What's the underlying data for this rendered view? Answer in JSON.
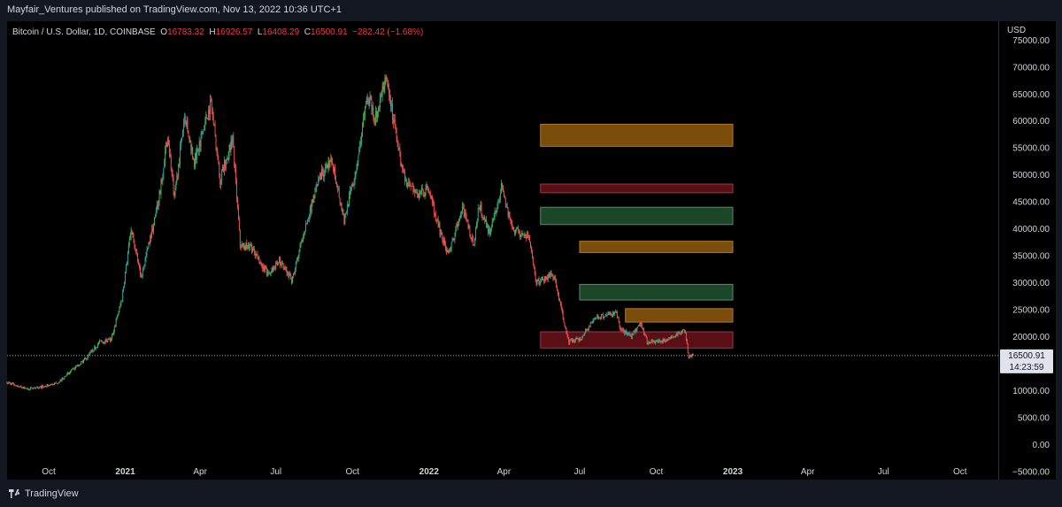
{
  "publisher_line": "Mayfair_Ventures published on TradingView.com, Nov 13, 2022 10:36 UTC+1",
  "legend": {
    "symbol": "Bitcoin / U.S. Dollar, 1D, COINBASE",
    "open_label": "O",
    "open": "16783.32",
    "high_label": "H",
    "high": "16926.57",
    "low_label": "L",
    "low": "16408.29",
    "close_label": "C",
    "close": "16500.91",
    "change": "−282.42 (−1.68%)"
  },
  "price_scale": {
    "currency": "USD",
    "ticks": [
      75000,
      70000,
      65000,
      60000,
      55000,
      50000,
      45000,
      40000,
      35000,
      30000,
      25000,
      20000,
      15000,
      10000,
      5000,
      0,
      -5000
    ],
    "tick_labels": [
      "75000.00",
      "70000.00",
      "65000.00",
      "60000.00",
      "55000.00",
      "50000.00",
      "45000.00",
      "40000.00",
      "35000.00",
      "30000.00",
      "25000.00",
      "20000.00",
      "",
      "10000.00",
      "5000.00",
      "0.00",
      "−5000.00"
    ]
  },
  "last_price": {
    "value": 16500.91,
    "label": "16500.91",
    "countdown": "14:23:59"
  },
  "time_axis": {
    "ticks": [
      {
        "label": "Oct",
        "t": "2020-10-01",
        "bold": false
      },
      {
        "label": "2021",
        "t": "2021-01-01",
        "bold": true
      },
      {
        "label": "Apr",
        "t": "2021-04-01",
        "bold": false
      },
      {
        "label": "Jul",
        "t": "2021-07-01",
        "bold": false
      },
      {
        "label": "Oct",
        "t": "2021-10-01",
        "bold": false
      },
      {
        "label": "2022",
        "t": "2022-01-01",
        "bold": true
      },
      {
        "label": "Apr",
        "t": "2022-04-01",
        "bold": false
      },
      {
        "label": "Jul",
        "t": "2022-07-01",
        "bold": false
      },
      {
        "label": "Oct",
        "t": "2022-10-01",
        "bold": false
      },
      {
        "label": "2023",
        "t": "2023-01-01",
        "bold": true
      },
      {
        "label": "Apr",
        "t": "2023-04-01",
        "bold": false
      },
      {
        "label": "Jul",
        "t": "2023-07-01",
        "bold": false
      },
      {
        "label": "Oct",
        "t": "2023-10-01",
        "bold": false
      }
    ]
  },
  "chart_data": {
    "type": "candlestick",
    "series": "Bitcoin / U.S. Dollar, 1D, COINBASE",
    "xlim": [
      "2020-08-12",
      "2023-11-16"
    ],
    "ylim": [
      -6500,
      78500
    ],
    "price_path": [
      [
        "2020-08-12",
        11500
      ],
      [
        "2020-09-05",
        10300
      ],
      [
        "2020-09-20",
        10600
      ],
      [
        "2020-10-10",
        11300
      ],
      [
        "2020-10-25",
        13200
      ],
      [
        "2020-11-15",
        16000
      ],
      [
        "2020-12-01",
        19000
      ],
      [
        "2020-12-15",
        19500
      ],
      [
        "2020-12-28",
        27000
      ],
      [
        "2021-01-08",
        40000
      ],
      [
        "2021-01-20",
        31000
      ],
      [
        "2021-02-10",
        45000
      ],
      [
        "2021-02-21",
        57500
      ],
      [
        "2021-03-01",
        45500
      ],
      [
        "2021-03-13",
        61000
      ],
      [
        "2021-03-25",
        52500
      ],
      [
        "2021-04-14",
        63500
      ],
      [
        "2021-04-25",
        49000
      ],
      [
        "2021-05-10",
        57000
      ],
      [
        "2021-05-19",
        37000
      ],
      [
        "2021-06-01",
        36500
      ],
      [
        "2021-06-22",
        31500
      ],
      [
        "2021-07-05",
        34000
      ],
      [
        "2021-07-20",
        30500
      ],
      [
        "2021-08-05",
        40000
      ],
      [
        "2021-08-22",
        49500
      ],
      [
        "2021-09-07",
        52500
      ],
      [
        "2021-09-21",
        41500
      ],
      [
        "2021-10-05",
        51000
      ],
      [
        "2021-10-20",
        65000
      ],
      [
        "2021-10-28",
        60000
      ],
      [
        "2021-11-10",
        68500
      ],
      [
        "2021-11-26",
        54000
      ],
      [
        "2021-12-04",
        48000
      ],
      [
        "2021-12-20",
        46500
      ],
      [
        "2022-01-01",
        47500
      ],
      [
        "2022-01-10",
        41500
      ],
      [
        "2022-01-24",
        35000
      ],
      [
        "2022-02-10",
        44000
      ],
      [
        "2022-02-24",
        37000
      ],
      [
        "2022-03-02",
        44500
      ],
      [
        "2022-03-15",
        39000
      ],
      [
        "2022-03-29",
        47500
      ],
      [
        "2022-04-11",
        40000
      ],
      [
        "2022-05-01",
        38500
      ],
      [
        "2022-05-10",
        30000
      ],
      [
        "2022-05-31",
        31500
      ],
      [
        "2022-06-13",
        22000
      ],
      [
        "2022-06-18",
        19000
      ],
      [
        "2022-07-01",
        19500
      ],
      [
        "2022-07-20",
        23500
      ],
      [
        "2022-08-14",
        24500
      ],
      [
        "2022-08-19",
        21500
      ],
      [
        "2022-09-01",
        20000
      ],
      [
        "2022-09-12",
        22500
      ],
      [
        "2022-09-20",
        19000
      ],
      [
        "2022-10-10",
        19300
      ],
      [
        "2022-10-29",
        20800
      ],
      [
        "2022-11-05",
        21000
      ],
      [
        "2022-11-09",
        16000
      ],
      [
        "2022-11-13",
        16500
      ]
    ],
    "last": {
      "open": 16783.32,
      "high": 16926.57,
      "low": 16408.29,
      "close": 16500.91,
      "change": -282.42,
      "change_pct": -1.68
    },
    "zones": [
      {
        "kind": "orange",
        "low": 55300,
        "high": 59400,
        "from": "2022-05-15",
        "to": "2023-01-01"
      },
      {
        "kind": "red",
        "low": 46700,
        "high": 48300,
        "from": "2022-05-15",
        "to": "2023-01-01"
      },
      {
        "kind": "green",
        "low": 40800,
        "high": 44000,
        "from": "2022-05-15",
        "to": "2023-01-01"
      },
      {
        "kind": "orange",
        "low": 35600,
        "high": 37700,
        "from": "2022-07-01",
        "to": "2023-01-01"
      },
      {
        "kind": "green",
        "low": 26800,
        "high": 29700,
        "from": "2022-07-01",
        "to": "2023-01-01"
      },
      {
        "kind": "orange",
        "low": 22700,
        "high": 25200,
        "from": "2022-08-25",
        "to": "2023-01-01"
      },
      {
        "kind": "red",
        "low": 17900,
        "high": 20900,
        "from": "2022-05-15",
        "to": "2023-01-01"
      }
    ],
    "grid": false
  },
  "colors": {
    "up": "#26a69a",
    "up_bright": "#4caf50",
    "down": "#ef5350",
    "zone_orange_fill": "#7a4d0d",
    "zone_orange_border": "#b07a24",
    "zone_red_fill": "#5a0f16",
    "zone_red_border": "#9c3a42",
    "zone_green_fill": "#1b4628",
    "zone_green_border": "#5a8a66",
    "last_line": "#b2b5be"
  },
  "footer": {
    "brand": "TradingView"
  }
}
